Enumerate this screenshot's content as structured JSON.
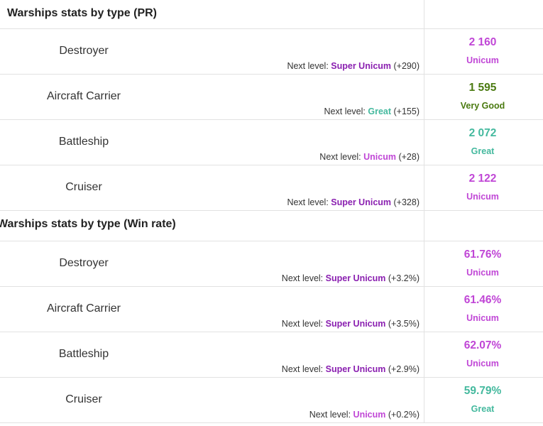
{
  "colors": {
    "unicum": "#c046d6",
    "super_unicum": "#8a1fb0",
    "great": "#44b99e",
    "very_good": "#4a7a10"
  },
  "sections": [
    {
      "title": "Warships stats by type (PR)",
      "rows": [
        {
          "name": "Destroyer",
          "next_label": "Next level:",
          "next_level": "Super Unicum",
          "next_level_class": "super_unicum",
          "next_delta": "(+290)",
          "value": "2 160",
          "rating": "Unicum",
          "rating_class": "unicum"
        },
        {
          "name": "Aircraft Carrier",
          "next_label": "Next level:",
          "next_level": "Great",
          "next_level_class": "great",
          "next_delta": "(+155)",
          "value": "1 595",
          "rating": "Very Good",
          "rating_class": "very_good"
        },
        {
          "name": "Battleship",
          "next_label": "Next level:",
          "next_level": "Unicum",
          "next_level_class": "unicum",
          "next_delta": "(+28)",
          "value": "2 072",
          "rating": "Great",
          "rating_class": "great"
        },
        {
          "name": "Cruiser",
          "next_label": "Next level:",
          "next_level": "Super Unicum",
          "next_level_class": "super_unicum",
          "next_delta": "(+328)",
          "value": "2 122",
          "rating": "Unicum",
          "rating_class": "unicum"
        }
      ]
    },
    {
      "title": "Warships stats by type (Win rate)",
      "rows": [
        {
          "name": "Destroyer",
          "next_label": "Next level:",
          "next_level": "Super Unicum",
          "next_level_class": "super_unicum",
          "next_delta": "(+3.2%)",
          "value": "61.76%",
          "rating": "Unicum",
          "rating_class": "unicum"
        },
        {
          "name": "Aircraft Carrier",
          "next_label": "Next level:",
          "next_level": "Super Unicum",
          "next_level_class": "super_unicum",
          "next_delta": "(+3.5%)",
          "value": "61.46%",
          "rating": "Unicum",
          "rating_class": "unicum"
        },
        {
          "name": "Battleship",
          "next_label": "Next level:",
          "next_level": "Super Unicum",
          "next_level_class": "super_unicum",
          "next_delta": "(+2.9%)",
          "value": "62.07%",
          "rating": "Unicum",
          "rating_class": "unicum"
        },
        {
          "name": "Cruiser",
          "next_label": "Next level:",
          "next_level": "Unicum",
          "next_level_class": "unicum",
          "next_delta": "(+0.2%)",
          "value": "59.79%",
          "rating": "Great",
          "rating_class": "great"
        }
      ]
    }
  ]
}
